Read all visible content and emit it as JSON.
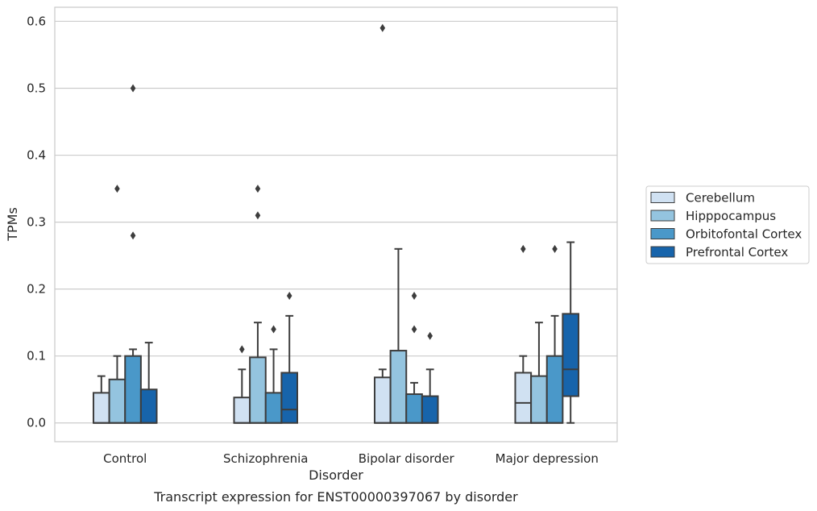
{
  "chart_data": {
    "type": "boxplot",
    "title": "",
    "caption": "Transcript expression for ENST00000397067 by disorder",
    "xlabel": "Disorder",
    "ylabel": "TPMs",
    "ylim": [
      -0.028,
      0.621
    ],
    "yticks": [
      0.0,
      0.1,
      0.2,
      0.3,
      0.4,
      0.5,
      0.6
    ],
    "ytick_labels": [
      "0.0",
      "0.1",
      "0.2",
      "0.3",
      "0.4",
      "0.5",
      "0.6"
    ],
    "grid": true,
    "legend_position": "right",
    "categories": [
      "Control",
      "Schizophrenia",
      "Bipolar disorder",
      "Major depression"
    ],
    "series": [
      {
        "name": "Cerebellum",
        "color": "#d0e1f2",
        "boxes": [
          {
            "q1": 0.0,
            "median": 0.0,
            "q3": 0.045,
            "whisker_low": 0.0,
            "whisker_high": 0.07,
            "outliers": []
          },
          {
            "q1": 0.0,
            "median": 0.0,
            "q3": 0.038,
            "whisker_low": 0.0,
            "whisker_high": 0.08,
            "outliers": [
              0.11
            ]
          },
          {
            "q1": 0.0,
            "median": 0.0,
            "q3": 0.068,
            "whisker_low": 0.0,
            "whisker_high": 0.08,
            "outliers": [
              0.59
            ]
          },
          {
            "q1": 0.0,
            "median": 0.03,
            "q3": 0.075,
            "whisker_low": 0.0,
            "whisker_high": 0.1,
            "outliers": [
              0.26
            ]
          }
        ]
      },
      {
        "name": "Hipppocampus",
        "color": "#94c4df",
        "boxes": [
          {
            "q1": 0.0,
            "median": 0.0,
            "q3": 0.065,
            "whisker_low": 0.0,
            "whisker_high": 0.1,
            "outliers": [
              0.35
            ]
          },
          {
            "q1": 0.0,
            "median": 0.0,
            "q3": 0.098,
            "whisker_low": 0.0,
            "whisker_high": 0.15,
            "outliers": [
              0.31,
              0.35
            ]
          },
          {
            "q1": 0.0,
            "median": 0.0,
            "q3": 0.108,
            "whisker_low": 0.0,
            "whisker_high": 0.26,
            "outliers": []
          },
          {
            "q1": 0.0,
            "median": 0.0,
            "q3": 0.07,
            "whisker_low": 0.0,
            "whisker_high": 0.15,
            "outliers": []
          }
        ]
      },
      {
        "name": "Orbitofontal Cortex",
        "color": "#4a98c9",
        "boxes": [
          {
            "q1": 0.0,
            "median": 0.0,
            "q3": 0.1,
            "whisker_low": 0.0,
            "whisker_high": 0.11,
            "outliers": [
              0.28,
              0.5
            ]
          },
          {
            "q1": 0.0,
            "median": 0.0,
            "q3": 0.045,
            "whisker_low": 0.0,
            "whisker_high": 0.11,
            "outliers": [
              0.14
            ]
          },
          {
            "q1": 0.0,
            "median": 0.0,
            "q3": 0.043,
            "whisker_low": 0.0,
            "whisker_high": 0.06,
            "outliers": [
              0.14,
              0.19
            ]
          },
          {
            "q1": 0.0,
            "median": 0.0,
            "q3": 0.1,
            "whisker_low": 0.0,
            "whisker_high": 0.16,
            "outliers": [
              0.26
            ]
          }
        ]
      },
      {
        "name": "Prefrontal Cortex",
        "color": "#1764ab",
        "boxes": [
          {
            "q1": 0.0,
            "median": 0.0,
            "q3": 0.05,
            "whisker_low": 0.0,
            "whisker_high": 0.12,
            "outliers": []
          },
          {
            "q1": 0.0,
            "median": 0.02,
            "q3": 0.075,
            "whisker_low": 0.0,
            "whisker_high": 0.16,
            "outliers": [
              0.19
            ]
          },
          {
            "q1": 0.0,
            "median": 0.0,
            "q3": 0.04,
            "whisker_low": 0.0,
            "whisker_high": 0.08,
            "outliers": [
              0.13
            ]
          },
          {
            "q1": 0.04,
            "median": 0.08,
            "q3": 0.163,
            "whisker_low": 0.0,
            "whisker_high": 0.27,
            "outliers": []
          }
        ]
      }
    ]
  }
}
